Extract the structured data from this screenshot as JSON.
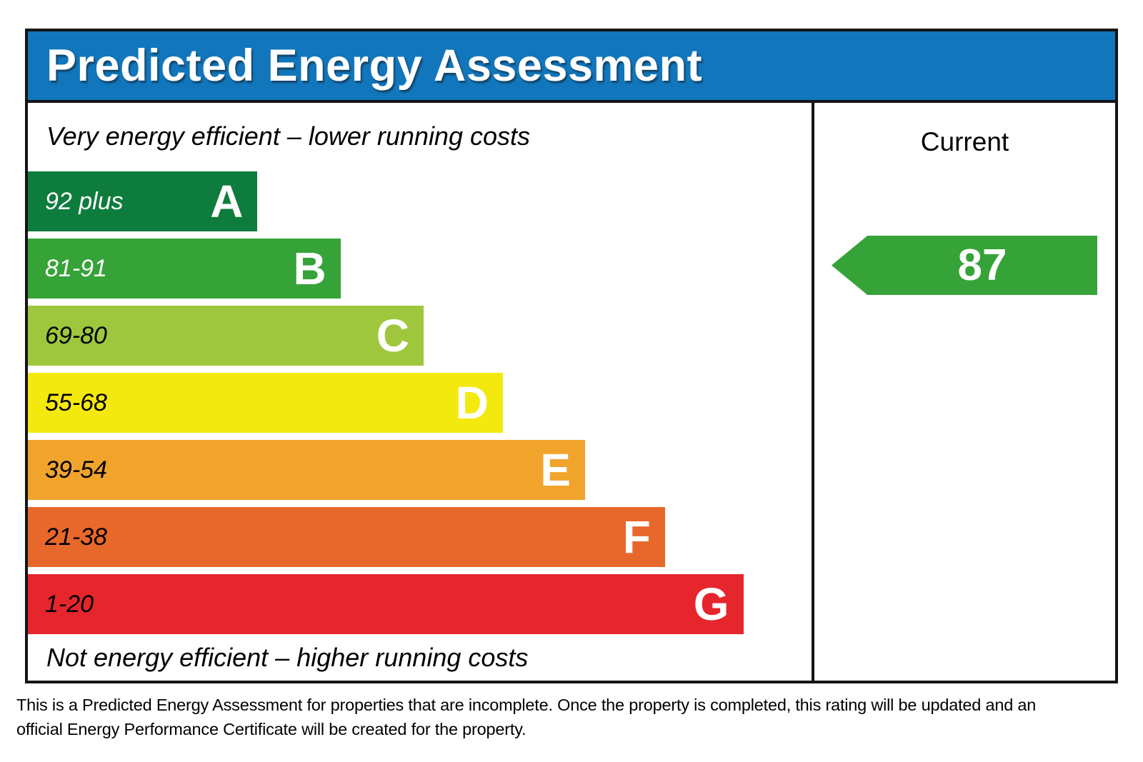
{
  "title": "Predicted Energy Assessment",
  "captions": {
    "top": "Very energy efficient – lower running costs",
    "bottom": "Not energy efficient – higher running costs"
  },
  "current_column": {
    "header": "Current",
    "value": "87",
    "band": "B",
    "arrow_color": "#35a338"
  },
  "footer": {
    "line1": "This is a Predicted Energy Assessment for properties that are incomplete. Once the property is completed, this rating will be updated and an",
    "line2": "official Energy Performance Certificate will be created for the property."
  },
  "colors": {
    "header_bg": "#1176bc",
    "border": "#141414",
    "title_text": "#ffffff",
    "body_bg": "#ffffff"
  },
  "chart_data": {
    "type": "bar",
    "title": "Predicted Energy Assessment",
    "orientation": "horizontal",
    "categories": [
      "A",
      "B",
      "C",
      "D",
      "E",
      "F",
      "G"
    ],
    "bands": [
      {
        "letter": "A",
        "range": "92 plus",
        "color": "#0e7c3c",
        "label_color": "#ffffff",
        "width_pct": 29.3
      },
      {
        "letter": "B",
        "range": "81-91",
        "color": "#35a338",
        "label_color": "#ffffff",
        "width_pct": 39.9
      },
      {
        "letter": "C",
        "range": "69-80",
        "color": "#9ec73e",
        "label_color": "#000000",
        "width_pct": 50.5
      },
      {
        "letter": "D",
        "range": "55-68",
        "color": "#f4e90e",
        "label_color": "#000000",
        "width_pct": 60.6
      },
      {
        "letter": "E",
        "range": "39-54",
        "color": "#f1a42c",
        "label_color": "#000000",
        "width_pct": 71.1
      },
      {
        "letter": "F",
        "range": "21-38",
        "color": "#e8682b",
        "label_color": "#000000",
        "width_pct": 81.3
      },
      {
        "letter": "G",
        "range": "1-20",
        "color": "#e5262c",
        "label_color": "#000000",
        "width_pct": 91.3
      }
    ],
    "current_rating": 87,
    "current_band": "B",
    "legend_position": "right-column",
    "grid": false
  }
}
